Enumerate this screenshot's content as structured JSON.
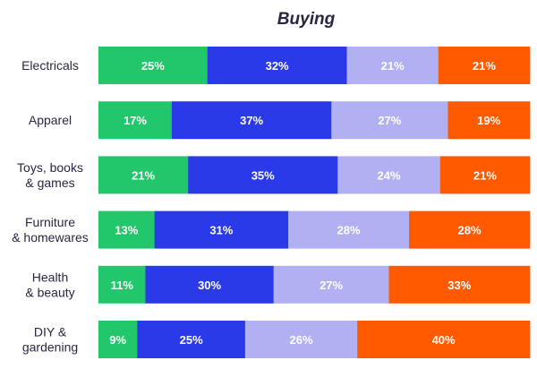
{
  "chart_data": {
    "type": "bar",
    "orientation": "horizontal",
    "stacked": true,
    "title": "Buying",
    "categories": [
      [
        "Electricals"
      ],
      [
        "Apparel"
      ],
      [
        "Toys, books",
        "& games"
      ],
      [
        "Furniture",
        "& homewares"
      ],
      [
        "Health",
        "& beauty"
      ],
      [
        "DIY &",
        "gardening"
      ]
    ],
    "series": [
      {
        "values": [
          25,
          17,
          21,
          13,
          11,
          9
        ],
        "color": "#22c76b",
        "label_color": "#ffffff"
      },
      {
        "values": [
          32,
          37,
          35,
          31,
          30,
          25
        ],
        "color": "#2b3ae8",
        "label_color": "#ffffff"
      },
      {
        "values": [
          21,
          27,
          24,
          28,
          27,
          26
        ],
        "color": "#b0b0f2",
        "label_color": "#ffffff"
      },
      {
        "values": [
          21,
          19,
          21,
          28,
          33,
          40
        ],
        "color": "#ff5a00",
        "label_color": "#ffffff"
      }
    ],
    "value_suffix": "%",
    "grid": false,
    "legend": "none"
  }
}
